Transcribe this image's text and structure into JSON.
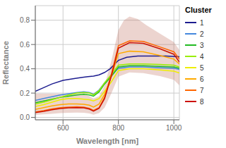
{
  "chart_data": {
    "type": "line",
    "xlabel": "Wavelength [nm]",
    "ylabel": "Reflectance",
    "legend_title": "Cluster",
    "xlim": [
      500,
      1020
    ],
    "ylim": [
      -0.02,
      0.92
    ],
    "xticks": [
      600,
      800,
      1000
    ],
    "yticks": [
      {
        "value": 0.0,
        "label": "0.0"
      },
      0.2,
      0.4,
      0.6,
      0.8
    ],
    "grid": true,
    "legend": "right",
    "series": [
      {
        "name": "1",
        "color": "#1c1c8f",
        "x": [
          500,
          530,
          560,
          600,
          640,
          670,
          690,
          710,
          730,
          750,
          770,
          800,
          830,
          870,
          920,
          970,
          1020
        ],
        "values": [
          0.215,
          0.245,
          0.275,
          0.305,
          0.32,
          0.33,
          0.335,
          0.34,
          0.35,
          0.37,
          0.4,
          0.47,
          0.495,
          0.505,
          0.505,
          0.505,
          0.5
        ]
      },
      {
        "name": "2",
        "color": "#4488dd",
        "x": [
          500,
          530,
          560,
          590,
          620,
          650,
          675,
          695,
          710,
          730,
          750,
          775,
          800,
          840,
          890,
          950,
          1000,
          1020
        ],
        "values": [
          0.14,
          0.155,
          0.17,
          0.185,
          0.195,
          0.205,
          0.21,
          0.205,
          0.19,
          0.225,
          0.285,
          0.345,
          0.405,
          0.415,
          0.415,
          0.41,
          0.405,
          0.395
        ]
      },
      {
        "name": "3",
        "color": "#22bb22",
        "x": [
          500,
          530,
          560,
          590,
          620,
          650,
          675,
          695,
          710,
          730,
          750,
          775,
          800,
          840,
          890,
          950,
          1000,
          1020
        ],
        "values": [
          0.12,
          0.135,
          0.15,
          0.165,
          0.175,
          0.185,
          0.19,
          0.185,
          0.175,
          0.21,
          0.275,
          0.34,
          0.415,
          0.425,
          0.425,
          0.42,
          0.415,
          0.405
        ]
      },
      {
        "name": "4",
        "color": "#99ee00",
        "x": [
          500,
          530,
          560,
          590,
          620,
          650,
          675,
          695,
          710,
          730,
          750,
          775,
          800,
          840,
          890,
          950,
          1000,
          1020
        ],
        "values": [
          0.11,
          0.125,
          0.145,
          0.165,
          0.185,
          0.2,
          0.205,
          0.2,
          0.185,
          0.22,
          0.285,
          0.355,
          0.43,
          0.44,
          0.44,
          0.435,
          0.43,
          0.415
        ]
      },
      {
        "name": "5",
        "color": "#eeee00",
        "x": [
          500,
          530,
          560,
          590,
          620,
          650,
          675,
          695,
          710,
          730,
          750,
          775,
          800,
          840,
          890,
          950,
          1000,
          1020
        ],
        "values": [
          0.09,
          0.105,
          0.125,
          0.145,
          0.155,
          0.155,
          0.15,
          0.145,
          0.135,
          0.155,
          0.215,
          0.295,
          0.385,
          0.4,
          0.4,
          0.39,
          0.38,
          0.365
        ]
      },
      {
        "name": "6",
        "color": "#ffaa00",
        "x": [
          500,
          530,
          560,
          590,
          620,
          650,
          675,
          695,
          710,
          730,
          750,
          775,
          800,
          840,
          890,
          950,
          1000,
          1020
        ],
        "values": [
          0.065,
          0.08,
          0.095,
          0.105,
          0.11,
          0.11,
          0.108,
          0.1,
          0.085,
          0.11,
          0.19,
          0.34,
          0.525,
          0.545,
          0.54,
          0.51,
          0.48,
          0.44
        ]
      },
      {
        "name": "7",
        "color": "#ff6600",
        "x": [
          500,
          530,
          560,
          590,
          620,
          650,
          675,
          695,
          710,
          730,
          750,
          775,
          800,
          840,
          890,
          950,
          1000,
          1020
        ],
        "values": [
          0.045,
          0.055,
          0.07,
          0.08,
          0.085,
          0.088,
          0.085,
          0.075,
          0.058,
          0.08,
          0.165,
          0.36,
          0.59,
          0.63,
          0.625,
          0.58,
          0.54,
          0.48
        ]
      },
      {
        "name": "8",
        "color": "#cc1100",
        "x": [
          500,
          530,
          560,
          590,
          620,
          650,
          675,
          695,
          710,
          730,
          750,
          775,
          800,
          840,
          890,
          950,
          1000,
          1020
        ],
        "values": [
          0.04,
          0.05,
          0.063,
          0.073,
          0.078,
          0.08,
          0.078,
          0.068,
          0.052,
          0.075,
          0.155,
          0.345,
          0.57,
          0.615,
          0.61,
          0.565,
          0.52,
          0.455
        ]
      }
    ],
    "band": {
      "color": "#c07060",
      "upper": {
        "x": [
          500,
          530,
          560,
          590,
          620,
          650,
          675,
          695,
          710,
          730,
          750,
          775,
          800,
          820,
          840,
          870,
          900,
          950,
          1000,
          1020
        ],
        "values": [
          0.195,
          0.195,
          0.195,
          0.195,
          0.195,
          0.195,
          0.19,
          0.175,
          0.155,
          0.175,
          0.265,
          0.47,
          0.72,
          0.8,
          0.83,
          0.81,
          0.76,
          0.69,
          0.62,
          0.555
        ]
      },
      "lower": {
        "x": [
          500,
          530,
          560,
          590,
          620,
          650,
          675,
          695,
          710,
          730,
          750,
          775,
          800,
          840,
          890,
          950,
          1000,
          1020
        ],
        "values": [
          0.02,
          0.025,
          0.03,
          0.035,
          0.038,
          0.04,
          0.038,
          0.032,
          0.022,
          0.035,
          0.08,
          0.2,
          0.335,
          0.37,
          0.365,
          0.34,
          0.31,
          0.265
        ]
      }
    }
  }
}
